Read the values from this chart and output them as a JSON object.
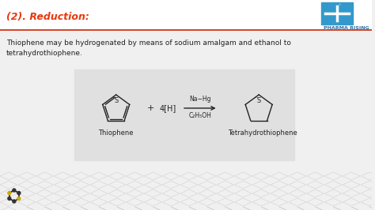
{
  "title": "(2). Reduction:",
  "title_color": "#e8380d",
  "title_fontsize": 9,
  "bg_color": "#f0f0f0",
  "header_bg": "#ffffff",
  "red_line_color": "#cc2200",
  "body_text": "Thiophene may be hydrogenated by means of sodium amalgam and ethanol to\ntetrahydrothiophene.",
  "body_fontsize": 6.5,
  "body_color": "#222222",
  "reaction_box_color": "#e0e0e0",
  "plus_text": "+ 4[H]",
  "arrow_label_top": "Na−Hg",
  "arrow_label_bot": "C₂H₅OH",
  "thiophene_label": "Thiophene",
  "product_label": "Tetrahydrothiophene",
  "label_fontsize": 6,
  "pharma_text": "PHARMA RISING",
  "pharma_color": "#2e6da4",
  "pharma_fontsize": 4.5
}
